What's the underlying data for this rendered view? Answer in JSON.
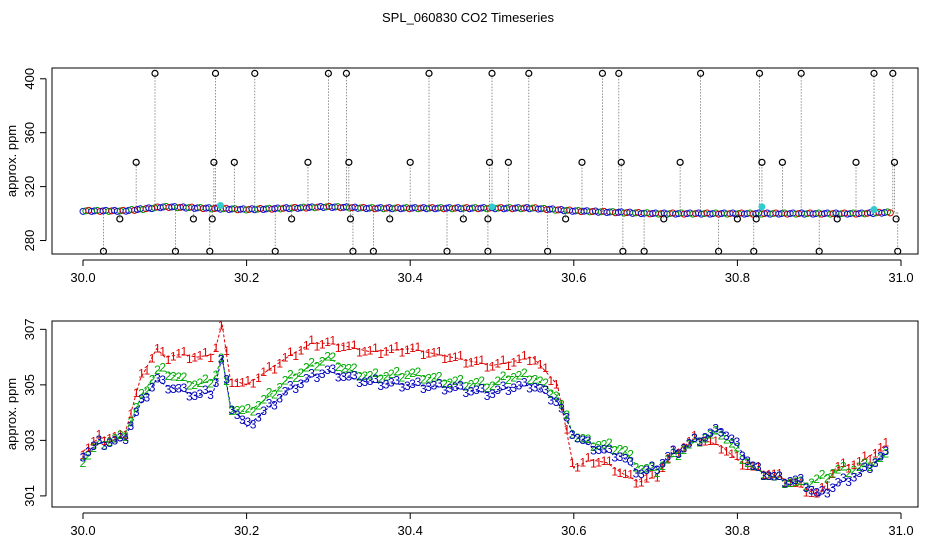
{
  "chart_data": [
    {
      "type": "scatter",
      "title": "SPL_060830  CO2 Timeseries",
      "xlabel": "",
      "ylabel": "approx. ppm",
      "xlim": [
        30.0,
        31.0
      ],
      "ylim": [
        270,
        408
      ],
      "x_ticks": [
        30.0,
        30.2,
        30.4,
        30.6,
        30.8,
        31.0
      ],
      "x_tick_labels": [
        "30.0",
        "30.2",
        "30.4",
        "30.6",
        "30.8",
        "31.0"
      ],
      "y_ticks": [
        280,
        320,
        360,
        400
      ],
      "y_tick_labels": [
        "280",
        "320",
        "360",
        "400"
      ],
      "baseline": {
        "x": [
          30.0,
          30.05,
          30.1,
          30.15,
          30.2,
          30.25,
          30.3,
          30.35,
          30.4,
          30.45,
          30.5,
          30.55,
          30.6,
          30.65,
          30.7,
          30.75,
          30.8,
          30.85,
          30.9,
          30.95,
          30.99
        ],
        "y": [
          302,
          302,
          305,
          304,
          303,
          304,
          305,
          304,
          304,
          304,
          304,
          304,
          302,
          301,
          300,
          300,
          300,
          300,
          300,
          300,
          301
        ]
      },
      "outlier_points": [
        {
          "x": 30.025,
          "y": 272
        },
        {
          "x": 30.045,
          "y": 296
        },
        {
          "x": 30.065,
          "y": 338
        },
        {
          "x": 30.088,
          "y": 404
        },
        {
          "x": 30.113,
          "y": 272
        },
        {
          "x": 30.135,
          "y": 296
        },
        {
          "x": 30.155,
          "y": 272
        },
        {
          "x": 30.158,
          "y": 296
        },
        {
          "x": 30.16,
          "y": 338
        },
        {
          "x": 30.162,
          "y": 404
        },
        {
          "x": 30.185,
          "y": 338
        },
        {
          "x": 30.21,
          "y": 404
        },
        {
          "x": 30.235,
          "y": 272
        },
        {
          "x": 30.255,
          "y": 296
        },
        {
          "x": 30.275,
          "y": 338
        },
        {
          "x": 30.3,
          "y": 404
        },
        {
          "x": 30.322,
          "y": 404
        },
        {
          "x": 30.325,
          "y": 338
        },
        {
          "x": 30.327,
          "y": 296
        },
        {
          "x": 30.33,
          "y": 272
        },
        {
          "x": 30.355,
          "y": 272
        },
        {
          "x": 30.375,
          "y": 296
        },
        {
          "x": 30.4,
          "y": 338
        },
        {
          "x": 30.423,
          "y": 404
        },
        {
          "x": 30.445,
          "y": 272
        },
        {
          "x": 30.465,
          "y": 296
        },
        {
          "x": 30.495,
          "y": 272
        },
        {
          "x": 30.495,
          "y": 296
        },
        {
          "x": 30.497,
          "y": 338
        },
        {
          "x": 30.5,
          "y": 404
        },
        {
          "x": 30.52,
          "y": 338
        },
        {
          "x": 30.545,
          "y": 404
        },
        {
          "x": 30.568,
          "y": 272
        },
        {
          "x": 30.59,
          "y": 296
        },
        {
          "x": 30.61,
          "y": 338
        },
        {
          "x": 30.635,
          "y": 404
        },
        {
          "x": 30.655,
          "y": 404
        },
        {
          "x": 30.658,
          "y": 338
        },
        {
          "x": 30.66,
          "y": 272
        },
        {
          "x": 30.686,
          "y": 272
        },
        {
          "x": 30.71,
          "y": 296
        },
        {
          "x": 30.73,
          "y": 338
        },
        {
          "x": 30.755,
          "y": 404
        },
        {
          "x": 30.777,
          "y": 272
        },
        {
          "x": 30.8,
          "y": 296
        },
        {
          "x": 30.82,
          "y": 272
        },
        {
          "x": 30.823,
          "y": 296
        },
        {
          "x": 30.827,
          "y": 404
        },
        {
          "x": 30.83,
          "y": 338
        },
        {
          "x": 30.855,
          "y": 338
        },
        {
          "x": 30.878,
          "y": 404
        },
        {
          "x": 30.9,
          "y": 272
        },
        {
          "x": 30.922,
          "y": 296
        },
        {
          "x": 30.945,
          "y": 338
        },
        {
          "x": 30.967,
          "y": 404
        },
        {
          "x": 30.99,
          "y": 404
        },
        {
          "x": 30.992,
          "y": 338
        },
        {
          "x": 30.994,
          "y": 296
        },
        {
          "x": 30.996,
          "y": 272
        }
      ],
      "cyan_points": [
        {
          "x": 30.168,
          "y": 306
        },
        {
          "x": 30.5,
          "y": 305
        },
        {
          "x": 30.83,
          "y": 305
        },
        {
          "x": 30.967,
          "y": 303
        }
      ]
    },
    {
      "type": "line",
      "title": "",
      "xlabel": "",
      "ylabel": "approx. ppm",
      "xlim": [
        30.0,
        31.0
      ],
      "ylim": [
        300.6,
        307.3
      ],
      "x_ticks": [
        30.0,
        30.2,
        30.4,
        30.6,
        30.8,
        31.0
      ],
      "x_tick_labels": [
        "30.0",
        "30.2",
        "30.4",
        "30.6",
        "30.8",
        "31.0"
      ],
      "y_ticks": [
        301,
        303,
        305,
        307
      ],
      "y_tick_labels": [
        "301",
        "303",
        "305",
        "307"
      ],
      "series": [
        {
          "name": "1",
          "symbol": "1",
          "color": "#dd0000",
          "x": [
            30.0,
            30.02,
            30.05,
            30.07,
            30.09,
            30.1,
            30.12,
            30.14,
            30.16,
            30.17,
            30.18,
            30.2,
            30.22,
            30.25,
            30.28,
            30.3,
            30.32,
            30.35,
            30.4,
            30.45,
            30.5,
            30.52,
            30.55,
            30.58,
            30.6,
            30.62,
            30.64,
            30.66,
            30.68,
            30.7,
            30.72,
            30.75,
            30.78,
            30.8,
            30.82,
            30.85,
            30.88,
            30.9,
            30.92,
            30.95,
            30.98
          ],
          "y": [
            302.6,
            303.1,
            303.1,
            305.2,
            306.3,
            306.0,
            306.1,
            306.0,
            306.1,
            307.2,
            305.2,
            305.0,
            305.4,
            306.0,
            306.5,
            306.5,
            306.4,
            306.2,
            306.3,
            306.0,
            305.7,
            305.8,
            306.0,
            305.0,
            302.0,
            302.3,
            302.2,
            301.8,
            301.5,
            301.7,
            302.5,
            303.1,
            302.8,
            302.3,
            302.0,
            301.7,
            301.3,
            301.0,
            302.0,
            302.2,
            302.8
          ]
        },
        {
          "name": "2",
          "symbol": "2",
          "color": "#00aa00",
          "x": [
            30.0,
            30.02,
            30.05,
            30.07,
            30.09,
            30.1,
            30.12,
            30.14,
            30.16,
            30.17,
            30.18,
            30.2,
            30.22,
            30.25,
            30.28,
            30.3,
            30.32,
            30.35,
            30.4,
            30.45,
            30.5,
            30.52,
            30.55,
            30.58,
            30.6,
            30.62,
            30.64,
            30.66,
            30.68,
            30.7,
            30.72,
            30.75,
            30.78,
            30.8,
            30.82,
            30.85,
            30.88,
            30.9,
            30.92,
            30.95,
            30.98
          ],
          "y": [
            302.3,
            302.9,
            303.1,
            304.5,
            305.5,
            305.5,
            305.2,
            305.0,
            305.2,
            306.0,
            304.2,
            304.0,
            304.4,
            305.2,
            305.7,
            306.0,
            305.6,
            305.3,
            305.4,
            305.1,
            305.0,
            305.3,
            305.3,
            304.6,
            303.2,
            302.9,
            302.8,
            302.7,
            302.0,
            301.9,
            302.4,
            303.0,
            303.3,
            302.6,
            302.0,
            301.6,
            301.4,
            301.6,
            301.9,
            302.0,
            302.4
          ]
        },
        {
          "name": "3",
          "symbol": "3",
          "color": "#0000bb",
          "x": [
            30.0,
            30.02,
            30.05,
            30.07,
            30.09,
            30.1,
            30.12,
            30.14,
            30.16,
            30.17,
            30.18,
            30.2,
            30.22,
            30.25,
            30.28,
            30.3,
            30.32,
            30.35,
            30.4,
            30.45,
            30.5,
            30.52,
            30.55,
            30.58,
            30.6,
            30.62,
            30.64,
            30.66,
            30.68,
            30.7,
            30.72,
            30.75,
            30.78,
            30.8,
            30.82,
            30.85,
            30.88,
            30.9,
            30.92,
            30.95,
            30.98
          ],
          "y": [
            302.5,
            302.9,
            303.0,
            304.3,
            305.2,
            305.0,
            304.8,
            304.6,
            304.8,
            306.0,
            304.3,
            303.5,
            304.0,
            304.8,
            305.3,
            305.5,
            305.3,
            305.1,
            305.0,
            304.9,
            304.7,
            304.9,
            305.0,
            304.4,
            303.2,
            302.8,
            302.6,
            302.4,
            301.8,
            302.0,
            302.5,
            303.0,
            303.4,
            302.8,
            302.0,
            301.6,
            301.5,
            301.0,
            301.4,
            301.8,
            302.5
          ]
        }
      ]
    }
  ]
}
